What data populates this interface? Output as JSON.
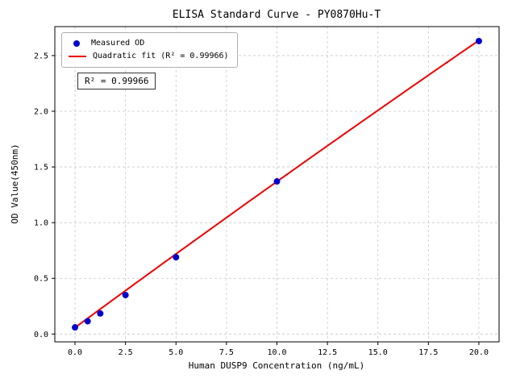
{
  "chart_data": {
    "type": "scatter",
    "title": "ELISA Standard Curve - PY0870Hu-T",
    "xlabel": "Human DUSP9 Concentration (ng/mL)",
    "ylabel": "OD Value(450nm)",
    "xlim": [
      -1.0,
      21.0
    ],
    "ylim": [
      -0.07,
      2.76
    ],
    "x_ticks": [
      0.0,
      2.5,
      5.0,
      7.5,
      10.0,
      12.5,
      15.0,
      17.5,
      20.0
    ],
    "x_tick_labels": [
      "0.0",
      "2.5",
      "5.0",
      "7.5",
      "10.0",
      "12.5",
      "15.0",
      "17.5",
      "20.0"
    ],
    "y_ticks": [
      0.0,
      0.5,
      1.0,
      1.5,
      2.0,
      2.5
    ],
    "y_tick_labels": [
      "0.0",
      "0.5",
      "1.0",
      "1.5",
      "2.0",
      "2.5"
    ],
    "grid": true,
    "grid_color": "#c8c8c8",
    "legend_position": "upper-left",
    "annotation": "R² = 0.99966",
    "series": [
      {
        "name": "Measured OD",
        "type": "scatter",
        "color": "#0000cd",
        "x": [
          0,
          0.625,
          1.25,
          2.5,
          5,
          10,
          20
        ],
        "y": [
          0.06,
          0.115,
          0.185,
          0.35,
          0.69,
          1.37,
          2.63
        ]
      },
      {
        "name": "Quadratic fit (R² = 0.99966)",
        "type": "line",
        "color": "#ee0000",
        "fit_coefficients": {
          "a": 0.058,
          "b": 0.1333,
          "c": -0.00022
        },
        "x_range": [
          0,
          20
        ]
      }
    ]
  }
}
